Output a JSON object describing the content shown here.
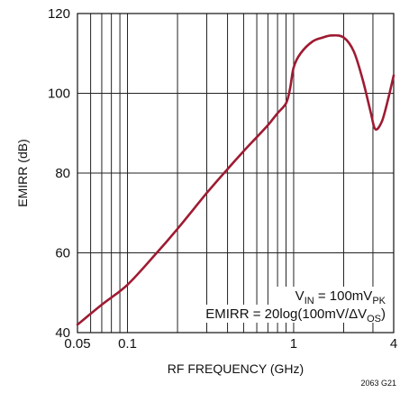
{
  "chart_data": {
    "type": "line",
    "xlabel": "RF FREQUENCY (GHz)",
    "ylabel": "EMIRR (dB)",
    "xscale": "log",
    "xlim": [
      0.05,
      4
    ],
    "ylim": [
      40,
      120
    ],
    "xticks": [
      {
        "value": 0.05,
        "label": "0.05"
      },
      {
        "value": 0.1,
        "label": "0.1"
      },
      {
        "value": 1,
        "label": "1"
      },
      {
        "value": 4,
        "label": "4"
      }
    ],
    "yticks": [
      {
        "value": 40,
        "label": "40"
      },
      {
        "value": 60,
        "label": "60"
      },
      {
        "value": 80,
        "label": "80"
      },
      {
        "value": 100,
        "label": "100"
      },
      {
        "value": 120,
        "label": "120"
      }
    ],
    "grid": true,
    "line_color": "#9e1b32",
    "annotations": [
      {
        "parts": [
          [
            "V",
            false
          ],
          [
            "IN",
            true
          ],
          [
            " = 100mV",
            false
          ],
          [
            "PK",
            true
          ]
        ]
      },
      {
        "parts": [
          [
            "EMIRR = 20log(100mV/ΔV",
            false
          ],
          [
            "OS",
            true
          ],
          [
            ")",
            false
          ]
        ]
      }
    ],
    "figure_id": "2063 G21",
    "series": [
      {
        "x": [
          0.05,
          0.07,
          0.1,
          0.15,
          0.2,
          0.3,
          0.4,
          0.5,
          0.6,
          0.7,
          0.8,
          0.9,
          0.95,
          1.0,
          1.1,
          1.3,
          1.5,
          1.7,
          2.0,
          2.3,
          2.6,
          2.9,
          3.1,
          3.4,
          3.7,
          4.0
        ],
        "y": [
          42,
          47,
          52,
          60,
          66,
          75,
          81,
          85.5,
          89,
          92,
          95,
          97.5,
          101,
          106.5,
          110,
          113,
          114,
          114.5,
          114,
          110.5,
          103.5,
          95.5,
          91,
          93,
          98.5,
          104.5
        ]
      }
    ]
  }
}
